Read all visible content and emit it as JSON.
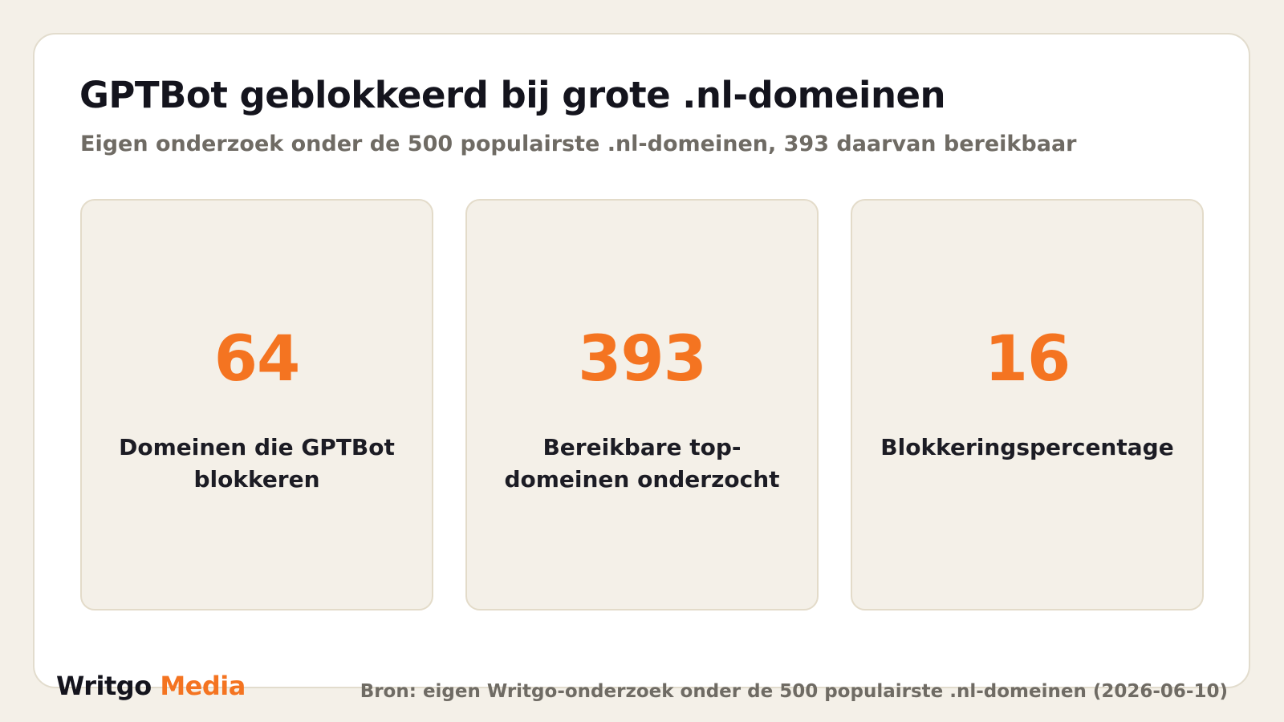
{
  "title": "GPTBot geblokkeerd bij grote .nl-domeinen",
  "subtitle": "Eigen onderzoek onder de 500 populairste .nl-domeinen, 393 daarvan bereikbaar",
  "stats": [
    {
      "value": "64",
      "label": "Domeinen die GPTBot blokkeren"
    },
    {
      "value": "393",
      "label": "Bereikbare top-domeinen onderzocht"
    },
    {
      "value": "16",
      "label": "Blokkeringspercentage"
    }
  ],
  "footer": {
    "brand_primary": "Writgo",
    "brand_accent": "Media",
    "source": "Bron: eigen Writgo-onderzoek onder de 500 populairste .nl-domeinen (2026-06-10)"
  },
  "colors": {
    "page_background": "#f4f0e8",
    "card_background": "#ffffff",
    "accent": "#f47421",
    "heading": "#14141d",
    "muted_text": "#6f6b64"
  }
}
